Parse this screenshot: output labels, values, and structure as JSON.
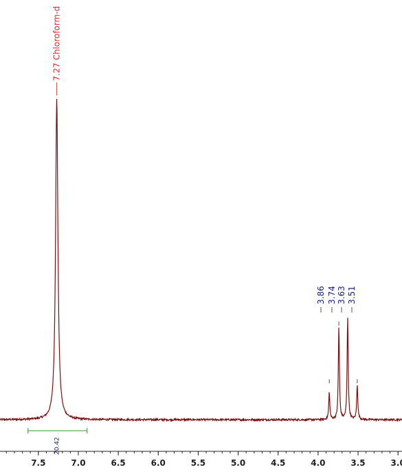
{
  "chart_data": {
    "type": "line",
    "xlim": [
      7.98,
      2.95
    ],
    "x_reversed": true,
    "x_ticks": [
      7.5,
      7.0,
      6.5,
      6.0,
      5.5,
      5.0,
      4.5,
      4.0,
      3.5,
      3.0
    ],
    "x_tick_labels": [
      "7.5",
      "7.0",
      "6.5",
      "6.0",
      "5.5",
      "5.0",
      "4.5",
      "4.0",
      "3.5",
      "3.0"
    ],
    "ylim": [
      0,
      1.0
    ],
    "grid": false,
    "title": "",
    "xlabel": "",
    "ylabel": "",
    "series": [
      {
        "baseline": 0.0,
        "peaks": [
          {
            "ppm": 7.27,
            "height": 1.0,
            "width": 0.035
          },
          {
            "ppm": 3.86,
            "height": 0.085,
            "width": 0.016
          },
          {
            "ppm": 3.74,
            "height": 0.29,
            "width": 0.016
          },
          {
            "ppm": 3.63,
            "height": 0.32,
            "width": 0.016
          },
          {
            "ppm": 3.51,
            "height": 0.11,
            "width": 0.016
          }
        ]
      }
    ],
    "peak_labels": [
      {
        "ppm": 7.27,
        "text": "7.27 Chloroform-d"
      },
      {
        "ppm": 3.86,
        "text": "3.86"
      },
      {
        "ppm": 3.74,
        "text": "3.74"
      },
      {
        "ppm": 3.63,
        "text": "3.63"
      },
      {
        "ppm": 3.51,
        "text": "3.51"
      }
    ],
    "integrals": [
      {
        "from": 7.63,
        "to": 6.89,
        "label_ppm": 7.27,
        "value": "20.42"
      }
    ],
    "colors": {
      "spectrum": "#7a0f0f",
      "solvent_label": "#d62c2c",
      "peak_label": "#1a237e",
      "integral": "#2e9b2e",
      "integral_value": "#1a237e",
      "axis": "#222222"
    }
  }
}
